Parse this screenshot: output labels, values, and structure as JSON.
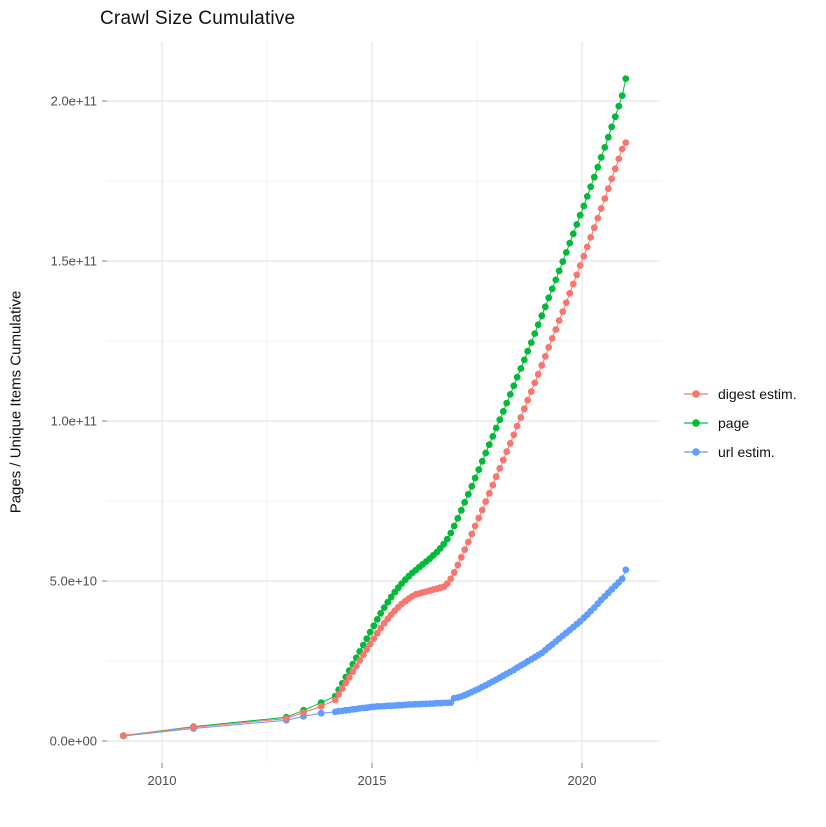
{
  "title": "Crawl Size Cumulative",
  "y_axis": {
    "label": "Pages / Unique Items Cumulative",
    "tick_labels": [
      "0.0e+00",
      "5.0e+10",
      "1.0e+11",
      "1.5e+11",
      "2.0e+11"
    ]
  },
  "x_axis": {
    "tick_labels": [
      "2010",
      "2015",
      "2020"
    ]
  },
  "legend": {
    "entries": [
      {
        "label": "digest estim.",
        "color": "#F8766D"
      },
      {
        "label": "page",
        "color": "#00BA38"
      },
      {
        "label": "url estim.",
        "color": "#619CFF"
      }
    ]
  },
  "colors": {
    "digest": "#F8766D",
    "page": "#00BA38",
    "url": "#619CFF",
    "grid_major": "#E4E4E4",
    "grid_minor": "#F0F0F0",
    "tick_mark": "#9a9a9a",
    "tick_text": "#4d4d4d"
  },
  "chart_data": {
    "type": "scatter",
    "style": "points connected by thin lines (ggplot-like)",
    "title": "Crawl Size Cumulative",
    "xlabel": "",
    "ylabel": "Pages / Unique Items Cumulative",
    "x_unit": "year (decimal)",
    "y_unit": "pages / unique items, cumulative count",
    "values_unit": "billions (1e9)",
    "xlim": [
      2008.7,
      2021.9
    ],
    "ylim": [
      0,
      220000000000.0
    ],
    "x_major_ticks": [
      2010,
      2015,
      2020
    ],
    "x_minor_gridlines": [
      2012.5,
      2017.5
    ],
    "y_major_ticks_billions": [
      0,
      50,
      100,
      150,
      200
    ],
    "y_minor_gridlines_billions": [
      25,
      75,
      125,
      175
    ],
    "grid": true,
    "legend_position": "right",
    "x": [
      2009.08,
      2010.75,
      2012.96,
      2013.37,
      2013.79,
      2014.125,
      2014.208,
      2014.292,
      2014.375,
      2014.458,
      2014.542,
      2014.625,
      2014.708,
      2014.792,
      2014.875,
      2014.958,
      2015.042,
      2015.125,
      2015.208,
      2015.292,
      2015.375,
      2015.458,
      2015.542,
      2015.625,
      2015.708,
      2015.792,
      2015.875,
      2015.958,
      2016.042,
      2016.125,
      2016.208,
      2016.292,
      2016.375,
      2016.458,
      2016.542,
      2016.625,
      2016.708,
      2016.792,
      2016.875,
      2016.958,
      2017.042,
      2017.125,
      2017.208,
      2017.292,
      2017.375,
      2017.458,
      2017.542,
      2017.625,
      2017.708,
      2017.792,
      2017.875,
      2017.958,
      2018.042,
      2018.125,
      2018.208,
      2018.292,
      2018.375,
      2018.458,
      2018.542,
      2018.625,
      2018.708,
      2018.792,
      2018.875,
      2018.958,
      2019.042,
      2019.125,
      2019.208,
      2019.292,
      2019.375,
      2019.458,
      2019.542,
      2019.625,
      2019.708,
      2019.792,
      2019.875,
      2019.958,
      2020.042,
      2020.125,
      2020.208,
      2020.292,
      2020.375,
      2020.458,
      2020.542,
      2020.625,
      2020.708,
      2020.792,
      2020.875,
      2020.958,
      2021.042
    ],
    "series": [
      {
        "name": "digest estim.",
        "color": "#F8766D",
        "values_billions": [
          1.7,
          4.3,
          7.0,
          8.9,
          10.8,
          12.8,
          14.6,
          16.4,
          18.2,
          19.9,
          21.7,
          23.4,
          25.2,
          26.9,
          28.6,
          30.3,
          32.0,
          33.7,
          35.3,
          36.8,
          38.2,
          39.5,
          40.7,
          41.8,
          42.8,
          43.7,
          44.5,
          45.2,
          45.8,
          46.1,
          46.4,
          46.7,
          47.0,
          47.3,
          47.6,
          47.9,
          48.2,
          49.2,
          50.7,
          52.7,
          55.0,
          57.4,
          59.8,
          62.2,
          64.7,
          67.2,
          69.7,
          72.2,
          74.8,
          77.4,
          80.0,
          82.6,
          85.2,
          87.8,
          90.4,
          93.0,
          95.7,
          98.4,
          101.1,
          103.8,
          106.5,
          109.2,
          111.9,
          114.6,
          117.4,
          120.2,
          123.0,
          125.8,
          128.6,
          131.4,
          134.2,
          137.0,
          139.9,
          142.8,
          145.7,
          148.6,
          151.5,
          154.4,
          157.4,
          160.4,
          163.4,
          166.4,
          169.5,
          172.6,
          175.7,
          178.8,
          181.9,
          185.0,
          187.0
        ]
      },
      {
        "name": "page",
        "color": "#00BA38",
        "values_billions": [
          1.7,
          4.5,
          7.4,
          9.6,
          12.0,
          14.0,
          16.0,
          18.0,
          20.0,
          22.0,
          24.0,
          26.0,
          28.0,
          30.0,
          32.0,
          34.0,
          36.0,
          38.0,
          39.9,
          41.7,
          43.4,
          45.0,
          46.5,
          47.9,
          49.2,
          50.4,
          51.5,
          52.5,
          53.4,
          54.3,
          55.2,
          56.1,
          57.0,
          58.0,
          59.0,
          60.2,
          61.5,
          63.1,
          65.0,
          67.2,
          69.6,
          72.1,
          74.6,
          77.1,
          79.6,
          82.2,
          84.8,
          87.4,
          90.0,
          92.6,
          95.2,
          97.8,
          100.4,
          103.0,
          105.6,
          108.3,
          111.0,
          113.7,
          116.4,
          119.1,
          121.8,
          124.5,
          127.3,
          130.1,
          132.9,
          135.7,
          138.5,
          141.3,
          144.1,
          146.9,
          149.8,
          152.7,
          155.6,
          158.5,
          161.4,
          164.3,
          167.2,
          170.2,
          173.2,
          176.2,
          179.3,
          182.4,
          185.5,
          188.7,
          191.9,
          195.1,
          198.4,
          201.7,
          207.0
        ]
      },
      {
        "name": "url estim.",
        "color": "#619CFF",
        "values_billions": [
          1.55,
          3.9,
          6.5,
          7.7,
          8.7,
          9.1,
          9.3,
          9.4,
          9.6,
          9.7,
          9.9,
          10.0,
          10.2,
          10.3,
          10.4,
          10.6,
          10.7,
          10.8,
          10.8,
          10.9,
          11.0,
          11.0,
          11.1,
          11.2,
          11.2,
          11.3,
          11.4,
          11.4,
          11.5,
          11.5,
          11.6,
          11.6,
          11.7,
          11.7,
          11.8,
          11.8,
          11.9,
          11.9,
          12.0,
          13.4,
          13.6,
          13.9,
          14.3,
          14.8,
          15.3,
          15.8,
          16.3,
          16.9,
          17.4,
          18.0,
          18.6,
          19.2,
          19.8,
          20.4,
          21.0,
          21.6,
          22.2,
          22.9,
          23.6,
          24.2,
          24.9,
          25.5,
          26.2,
          26.8,
          27.5,
          28.4,
          29.3,
          30.2,
          31.1,
          32.0,
          32.9,
          33.8,
          34.7,
          35.6,
          36.5,
          37.4,
          38.5,
          39.5,
          40.6,
          41.7,
          42.9,
          44.1,
          45.2,
          46.3,
          47.4,
          48.5,
          49.6,
          50.7,
          53.5
        ]
      }
    ]
  }
}
